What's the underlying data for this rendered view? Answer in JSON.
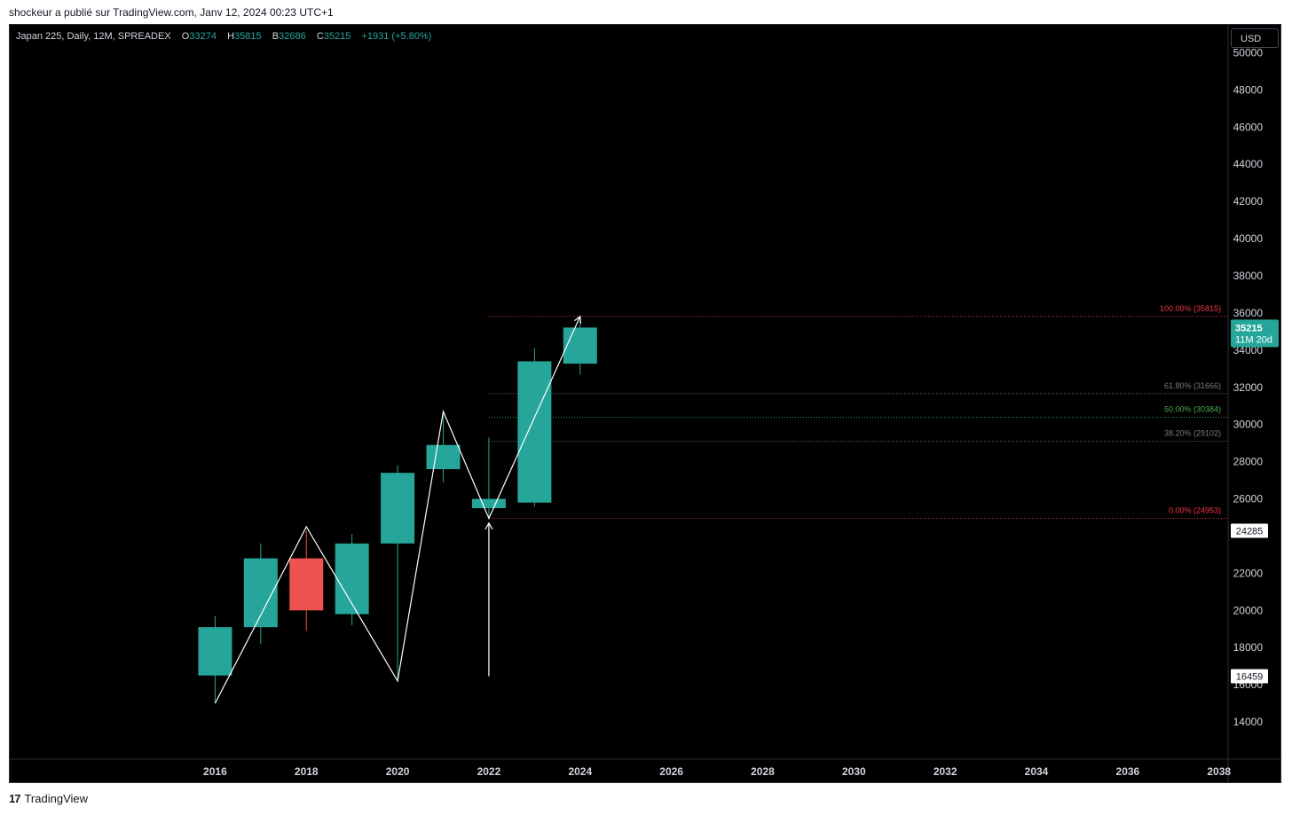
{
  "header": {
    "attribution": "shockeur a publié sur TradingView.com, Janv 12, 2024 00:23 UTC+1"
  },
  "legend": {
    "symbol": "Japan 225, Daily, 12M, SPREADEX",
    "o_label": "O",
    "o_value": "33274",
    "h_label": "H",
    "h_value": "35815",
    "b_label": "B",
    "b_value": "32686",
    "c_label": "C",
    "c_value": "35215",
    "change": "+1931 (+5.80%)"
  },
  "currency": "USD",
  "footer": {
    "brand": "TradingView",
    "logo_mark": "17"
  },
  "colors": {
    "up": "#26a69a",
    "down": "#ef5350",
    "background": "#000000",
    "axis_text": "#d1d4dc",
    "fib_red": "#f23645",
    "fib_gray": "#787b86",
    "fib_green": "#4caf50"
  },
  "chart_data": {
    "type": "candlestick",
    "x_ticks": [
      "2016",
      "2018",
      "2020",
      "2022",
      "2024",
      "2026",
      "2028",
      "2030",
      "2032",
      "2034",
      "2036",
      "2038"
    ],
    "y_ticks": [
      "14000",
      "16000",
      "18000",
      "20000",
      "22000",
      "26000",
      "28000",
      "30000",
      "32000",
      "34000",
      "36000",
      "38000",
      "40000",
      "42000",
      "44000",
      "46000",
      "48000",
      "50000"
    ],
    "ylim": [
      12000,
      51500
    ],
    "xlim": [
      2011.5,
      2038.2
    ],
    "candles": [
      {
        "year": 2016,
        "open": 16500,
        "high": 19700,
        "low": 15000,
        "close": 19100
      },
      {
        "year": 2017,
        "open": 19100,
        "high": 23600,
        "low": 18200,
        "close": 22800
      },
      {
        "year": 2018,
        "open": 22800,
        "high": 24300,
        "low": 18900,
        "close": 20000
      },
      {
        "year": 2019,
        "open": 19800,
        "high": 24100,
        "low": 19200,
        "close": 23600
      },
      {
        "year": 2020,
        "open": 23600,
        "high": 27800,
        "low": 16200,
        "close": 27400
      },
      {
        "year": 2021,
        "open": 27600,
        "high": 30700,
        "low": 26900,
        "close": 28900
      },
      {
        "year": 2022,
        "open": 25500,
        "high": 29300,
        "low": 24900,
        "close": 26000
      },
      {
        "year": 2023,
        "open": 25800,
        "high": 34100,
        "low": 25600,
        "close": 33400
      },
      {
        "year": 2024,
        "open": 33274,
        "high": 35815,
        "low": 32686,
        "close": 35215
      }
    ],
    "zigzag": [
      {
        "year": 2016,
        "price": 15000
      },
      {
        "year": 2018,
        "price": 24500
      },
      {
        "year": 2020,
        "price": 16200
      },
      {
        "year": 2021,
        "price": 30700
      },
      {
        "year": 2022,
        "price": 24953
      },
      {
        "year": 2024,
        "price": 35815
      }
    ],
    "arrow": {
      "year": 2022,
      "from": 16459,
      "to": 24700
    },
    "fib_levels": [
      {
        "label": "100.00% (35815)",
        "price": 35815,
        "color": "#f23645"
      },
      {
        "label": "61.80% (31666)",
        "price": 31666,
        "color": "#787b86"
      },
      {
        "label": "50.00% (30384)",
        "price": 30384,
        "color": "#4caf50"
      },
      {
        "label": "38.20% (29102)",
        "price": 29102,
        "color": "#787b86"
      },
      {
        "label": "0.00% (24953)",
        "price": 24953,
        "color": "#f23645"
      }
    ],
    "fib_start_year": 2022,
    "price_tags": [
      {
        "value": "35215",
        "sub": "11M 20d",
        "price": 35215,
        "style": "current"
      },
      {
        "value": "24285",
        "price": 24285,
        "style": "white"
      },
      {
        "value": "16459",
        "price": 16459,
        "style": "white"
      }
    ]
  }
}
